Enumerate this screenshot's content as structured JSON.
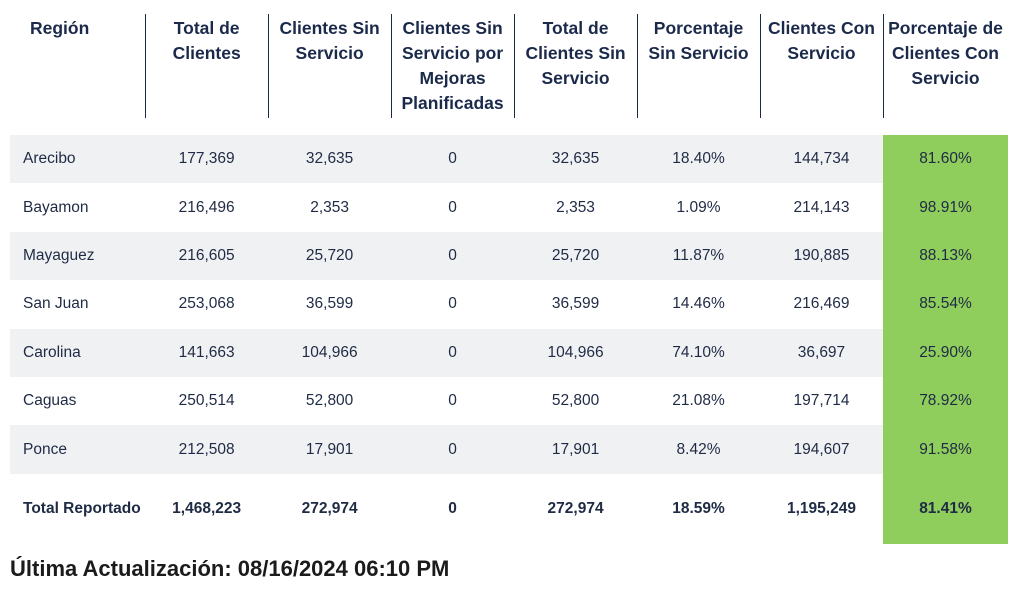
{
  "table": {
    "headers": [
      "Región",
      "Total de Clientes",
      "Clientes Sin Servicio",
      "Clientes Sin Servicio por Mejoras Planificadas",
      "Total de Clientes Sin Servicio",
      "Porcentaje Sin Servicio",
      "Clientes Con Servicio",
      "Porcentaje de Clientes Con Servicio"
    ],
    "rows": [
      [
        "Arecibo",
        "177,369",
        "32,635",
        "0",
        "32,635",
        "18.40%",
        "144,734",
        "81.60%"
      ],
      [
        "Bayamon",
        "216,496",
        "2,353",
        "0",
        "2,353",
        "1.09%",
        "214,143",
        "98.91%"
      ],
      [
        "Mayaguez",
        "216,605",
        "25,720",
        "0",
        "25,720",
        "11.87%",
        "190,885",
        "88.13%"
      ],
      [
        "San Juan",
        "253,068",
        "36,599",
        "0",
        "36,599",
        "14.46%",
        "216,469",
        "85.54%"
      ],
      [
        "Carolina",
        "141,663",
        "104,966",
        "0",
        "104,966",
        "74.10%",
        "36,697",
        "25.90%"
      ],
      [
        "Caguas",
        "250,514",
        "52,800",
        "0",
        "52,800",
        "21.08%",
        "197,714",
        "78.92%"
      ],
      [
        "Ponce",
        "212,508",
        "17,901",
        "0",
        "17,901",
        "8.42%",
        "194,607",
        "91.58%"
      ]
    ],
    "total": [
      "Total Reportado",
      "1,468,223",
      "272,974",
      "0",
      "272,974",
      "18.59%",
      "1,195,249",
      "81.41%"
    ]
  },
  "colors": {
    "highlight": "#8fce5d",
    "row_shade": "#f0f1f3",
    "header_text": "#1b2a4a"
  },
  "footer": {
    "last_updated": "Última Actualización: 08/16/2024 06:10 PM"
  }
}
